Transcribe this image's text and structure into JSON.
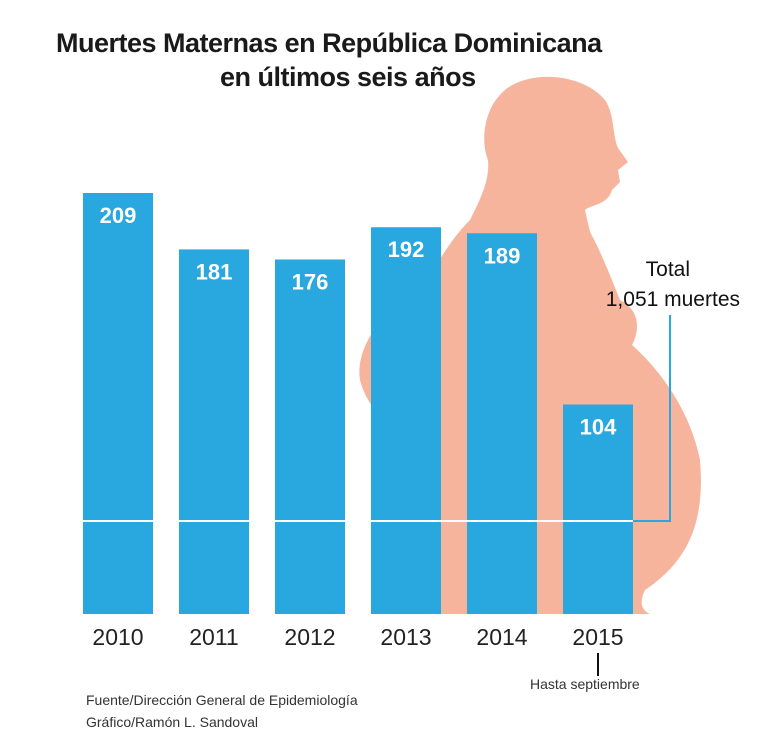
{
  "chart_data": {
    "type": "bar",
    "title": "Muertes Maternas en República Dominicana",
    "subtitle": "en últimos seis años",
    "categories": [
      "2010",
      "2011",
      "2012",
      "2013",
      "2014",
      "2015"
    ],
    "values": [
      209,
      181,
      176,
      192,
      189,
      104
    ],
    "category_notes": {
      "2015": "Hasta septiembre"
    },
    "total_label": "Total",
    "total_value": "1,051 muertes",
    "ylim": [
      0,
      215
    ],
    "grid": false,
    "colors": {
      "bar": "#29a7df",
      "label": "#ffffff",
      "silhouette": "#f6b49c"
    }
  },
  "footer": {
    "source": "Fuente/Dirección General de Epidemiología",
    "credit": "Gráfico/Ramón L. Sandoval"
  }
}
